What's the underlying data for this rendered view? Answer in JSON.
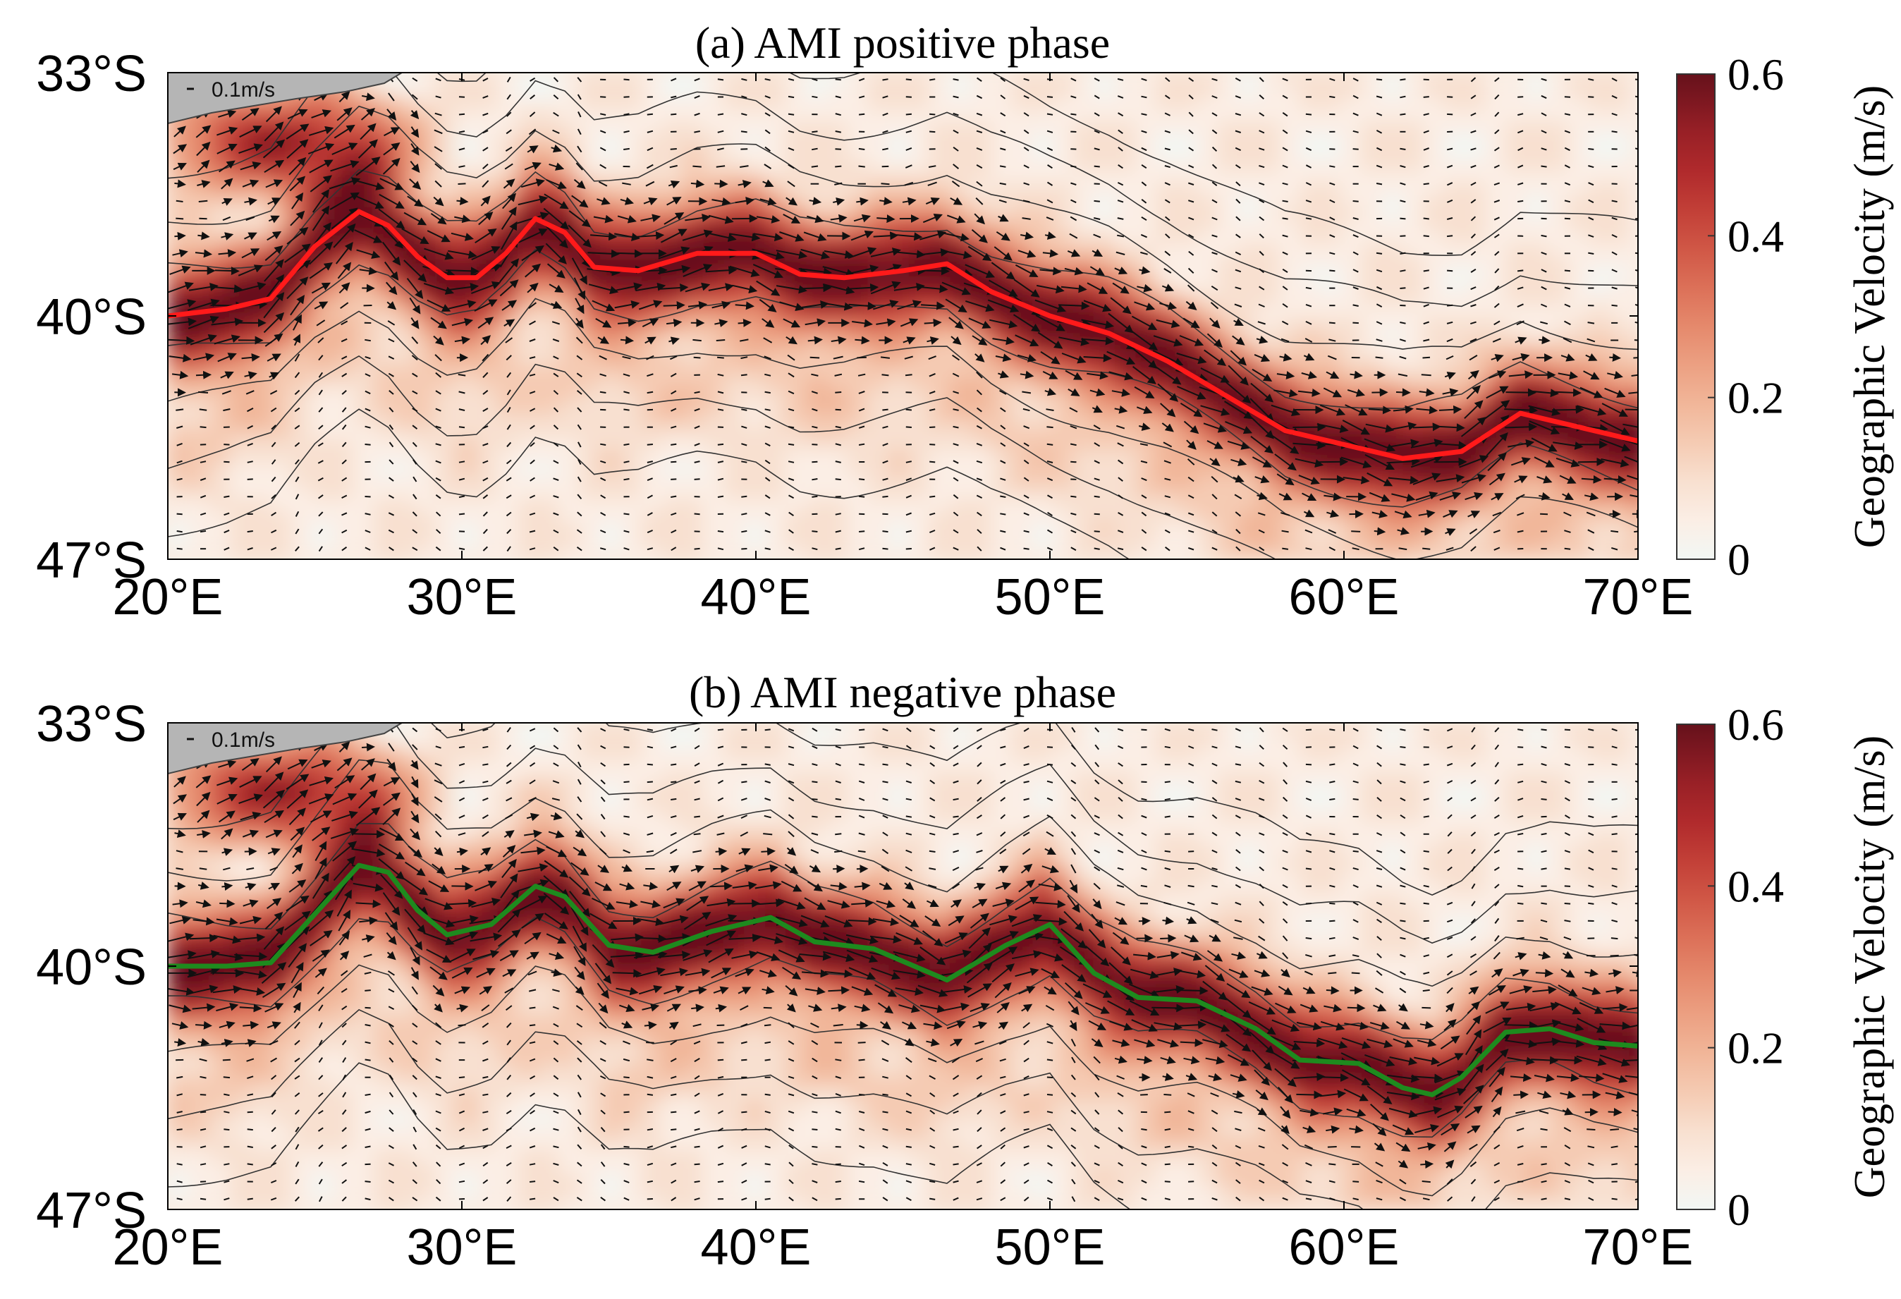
{
  "chart_data": [
    {
      "type": "heatmap",
      "title": "(a) AMI positive phase",
      "x_tick_labels": [
        "20°E",
        "30°E",
        "40°E",
        "50°E",
        "60°E",
        "70°E"
      ],
      "x_ticks": [
        20,
        30,
        40,
        50,
        60,
        70
      ],
      "y_tick_labels": [
        "33°S",
        "40°S",
        "47°S"
      ],
      "y_ticks": [
        -33,
        -40,
        -47
      ],
      "xlim": [
        20,
        70
      ],
      "ylim": [
        -47,
        -33
      ],
      "vector_scale_label": "0.1m/s",
      "front_color": "#ff1a1a",
      "front_line": {
        "lon": [
          20,
          22,
          23.5,
          25,
          26.5,
          27.5,
          28.5,
          29.5,
          30.5,
          31.5,
          32.5,
          33.5,
          34.5,
          36,
          38,
          40,
          41.5,
          43,
          45,
          46.5,
          48,
          50,
          52,
          54,
          56,
          58,
          60,
          62,
          64,
          66,
          68,
          70
        ],
        "lat": [
          -40,
          -39.8,
          -39.5,
          -38,
          -37,
          -37.4,
          -38.3,
          -38.9,
          -38.9,
          -38.2,
          -37.2,
          -37.6,
          -38.6,
          -38.7,
          -38.2,
          -38.2,
          -38.8,
          -38.9,
          -38.7,
          -38.5,
          -39.3,
          -40,
          -40.5,
          -41.3,
          -42.3,
          -43.3,
          -43.7,
          -44.1,
          -43.9,
          -42.8,
          -43.2,
          -43.6
        ]
      },
      "colorbar": {
        "label": "Geographic Velocity (m/s)",
        "tick_labels": [
          "0",
          "0.2",
          "0.4",
          "0.6"
        ],
        "ticks": [
          0,
          0.2,
          0.4,
          0.6
        ],
        "range": [
          0,
          0.6
        ],
        "colors": [
          "#f2f7f4",
          "#fbeee5",
          "#f8e0d0",
          "#f5cbb3",
          "#f1b699",
          "#eca082",
          "#e5896c",
          "#dc7058",
          "#d05746",
          "#c23f37",
          "#b02a2c",
          "#982026",
          "#7f1821",
          "#66111b"
        ]
      }
    },
    {
      "type": "heatmap",
      "title": "(b) AMI negative phase",
      "x_tick_labels": [
        "20°E",
        "30°E",
        "40°E",
        "50°E",
        "60°E",
        "70°E"
      ],
      "x_ticks": [
        20,
        30,
        40,
        50,
        60,
        70
      ],
      "y_tick_labels": [
        "33°S",
        "40°S",
        "47°S"
      ],
      "y_ticks": [
        -33,
        -40,
        -47
      ],
      "xlim": [
        20,
        70
      ],
      "ylim": [
        -47,
        -33
      ],
      "vector_scale_label": "0.1m/s",
      "front_color": "#1e8a1e",
      "front_line": {
        "lon": [
          20,
          22,
          23.5,
          25,
          26.5,
          27.5,
          28.5,
          29.5,
          31,
          32.5,
          33.5,
          35,
          36.5,
          38.5,
          40.5,
          42,
          44,
          46.5,
          48.5,
          50,
          51.5,
          53,
          55,
          57,
          58.5,
          60.5,
          62,
          63,
          64,
          65.5,
          67,
          68.5,
          70
        ],
        "lat": [
          -40,
          -40,
          -39.9,
          -38.5,
          -37.1,
          -37.3,
          -38.4,
          -39.1,
          -38.8,
          -37.7,
          -38,
          -39.4,
          -39.6,
          -39,
          -38.6,
          -39.3,
          -39.5,
          -40.4,
          -39.4,
          -38.8,
          -40.2,
          -40.9,
          -41,
          -41.8,
          -42.7,
          -42.8,
          -43.5,
          -43.7,
          -43.2,
          -41.9,
          -41.8,
          -42.2,
          -42.3
        ]
      },
      "colorbar": {
        "label": "Geographic Velocity (m/s)",
        "tick_labels": [
          "0",
          "0.2",
          "0.4",
          "0.6"
        ],
        "ticks": [
          0,
          0.2,
          0.4,
          0.6
        ],
        "range": [
          0,
          0.6
        ],
        "colors": [
          "#f2f7f4",
          "#fbeee5",
          "#f8e0d0",
          "#f5cbb3",
          "#f1b699",
          "#eca082",
          "#e5896c",
          "#dc7058",
          "#d05746",
          "#c23f37",
          "#b02a2c",
          "#982026",
          "#7f1821",
          "#66111b"
        ]
      }
    }
  ]
}
